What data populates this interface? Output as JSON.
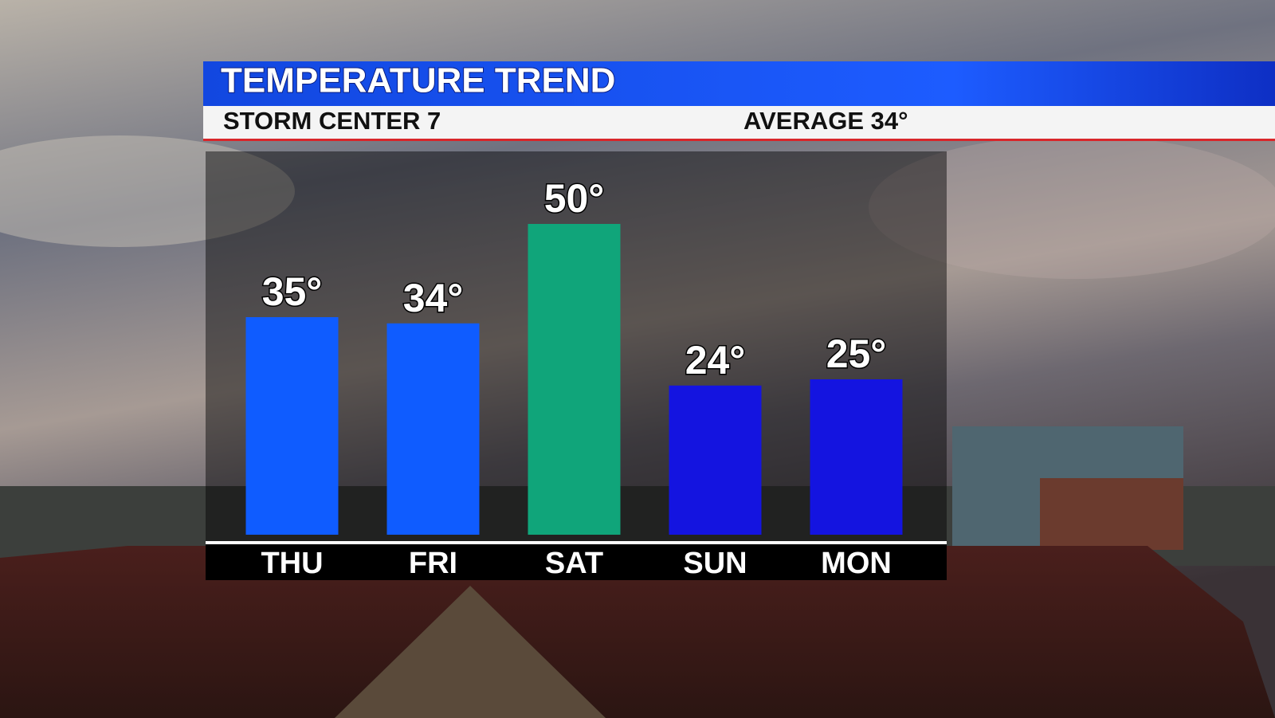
{
  "chart_data": {
    "type": "bar",
    "title": "TEMPERATURE TREND",
    "subtitle": "STORM CENTER 7",
    "annotation": "AVERAGE 34°",
    "categories": [
      "THU",
      "FRI",
      "SAT",
      "SUN",
      "MON"
    ],
    "values": [
      35,
      34,
      50,
      24,
      25
    ],
    "value_labels": [
      "35°",
      "34°",
      "50°",
      "24°",
      "25°"
    ],
    "colors": [
      "#0f5cff",
      "#0f5cff",
      "#10a57a",
      "#1414e0",
      "#1414e0"
    ]
  }
}
